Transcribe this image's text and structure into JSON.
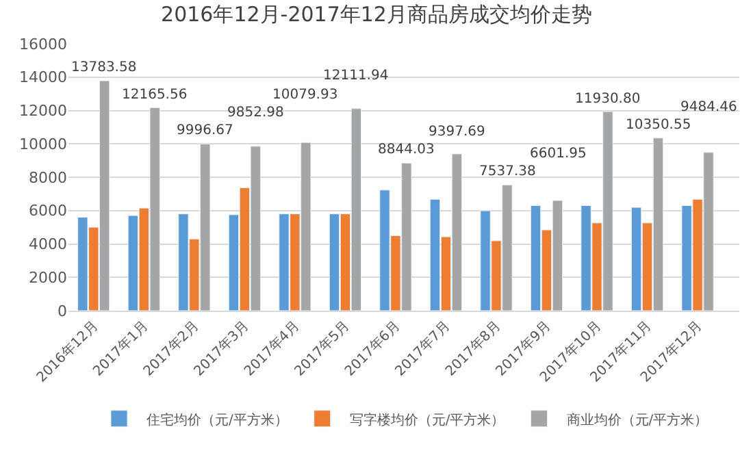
{
  "chart_data": {
    "type": "bar",
    "title": "2016年12月-2017年12月商品房成交均价走势",
    "categories": [
      "2016年12月",
      "2017年1月",
      "2017年2月",
      "2017年3月",
      "2017年4月",
      "2017年5月",
      "2017年6月",
      "2017年7月",
      "2017年8月",
      "2017年9月",
      "2017年10月",
      "2017年11月",
      "2017年12月"
    ],
    "series": [
      {
        "name": "住宅均价（元/平方米）",
        "color": "#5b9bd5",
        "values": [
          5600,
          5700,
          5800,
          5750,
          5800,
          5800,
          7230,
          6680,
          5990,
          6300,
          6300,
          6190,
          6300
        ]
      },
      {
        "name": "写字楼均价（元/平方米）",
        "color": "#ed7d31",
        "values": [
          5000,
          6150,
          4300,
          7370,
          5800,
          5800,
          4500,
          4430,
          4190,
          4840,
          5260,
          5260,
          6680
        ]
      },
      {
        "name": "商业均价（元/平方米）",
        "color": "#a5a5a5",
        "values": [
          13783.58,
          12165.56,
          9996.67,
          9852.98,
          10079.93,
          12111.94,
          8844.03,
          9397.69,
          7537.38,
          6601.95,
          11930.8,
          10350.55,
          9484.46
        ],
        "value_labels": [
          "13783.58",
          "12165.56",
          "9996.67",
          "9852.98",
          "10079.93",
          "12111.94",
          "8844.03",
          "9397.69",
          "7537.38",
          "6601.95",
          "11930.80",
          "10350.55",
          "9484.46"
        ]
      }
    ],
    "ylim": [
      0,
      16000
    ],
    "yticks": [
      0,
      2000,
      4000,
      6000,
      8000,
      10000,
      12000,
      14000,
      16000
    ],
    "grid": "y",
    "legend": "bottom"
  }
}
